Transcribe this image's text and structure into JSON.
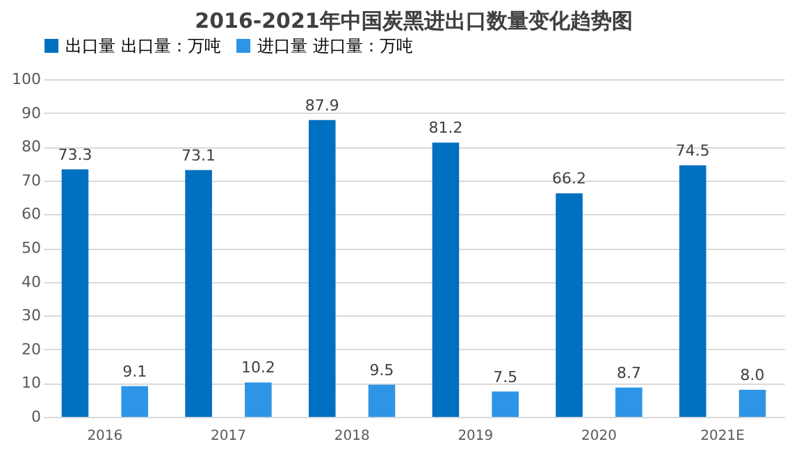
{
  "chart_data": {
    "type": "bar",
    "title": "2016-2021年中国炭黑进出口数量变化趋势图",
    "categories": [
      "2016",
      "2017",
      "2018",
      "2019",
      "2020",
      "2021E"
    ],
    "series": [
      {
        "name": "出口量 出口量：万吨",
        "color": "#0070c0",
        "values": [
          73.3,
          73.1,
          87.9,
          81.2,
          66.2,
          74.5
        ],
        "value_labels": [
          "73.3",
          "73.1",
          "87.9",
          "81.2",
          "66.2",
          "74.5"
        ]
      },
      {
        "name": "进口量 进口量：万吨",
        "color": "#2e95e6",
        "values": [
          9.1,
          10.2,
          9.5,
          7.5,
          8.7,
          8.0
        ],
        "value_labels": [
          "9.1",
          "10.2",
          "9.5",
          "7.5",
          "8.7",
          "8.0"
        ]
      }
    ],
    "ylim": [
      0,
      100
    ],
    "yticks": [
      0,
      10,
      20,
      30,
      40,
      50,
      60,
      70,
      80,
      90,
      100
    ],
    "grid": "y",
    "legend": "top"
  }
}
